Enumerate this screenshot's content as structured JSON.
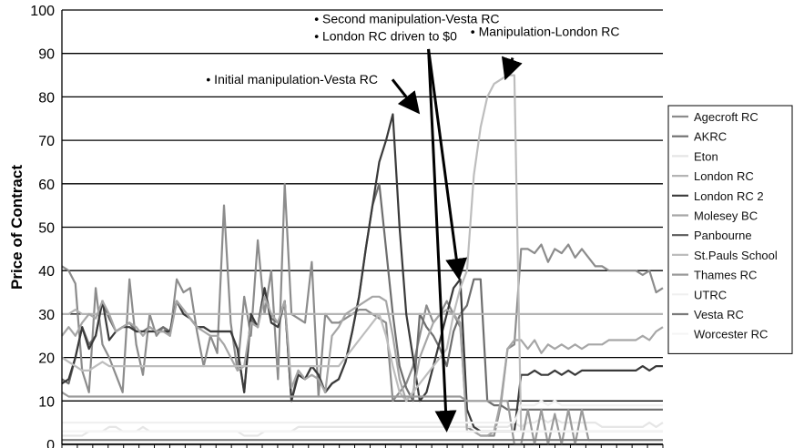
{
  "chart_data": {
    "type": "line",
    "ylabel": "Price of Contract",
    "ylim": [
      0,
      100
    ],
    "yticks": [
      0,
      10,
      20,
      30,
      40,
      50,
      60,
      70,
      80,
      90,
      100
    ],
    "grid": true,
    "legend_position": "right",
    "series": [
      {
        "name": "Agecroft RC",
        "color": "#8c8c8c",
        "values": [
          41,
          40,
          37,
          17,
          12,
          36,
          23,
          20,
          16,
          12,
          38,
          23,
          16,
          30,
          25,
          27,
          25,
          38,
          35,
          36,
          26,
          18,
          25,
          21,
          55,
          28,
          17,
          34,
          25,
          47,
          30,
          40,
          15,
          60,
          30,
          29,
          28,
          42,
          11,
          30,
          28,
          28,
          29,
          30,
          31,
          31,
          30,
          29,
          28,
          10,
          12,
          14,
          18,
          25,
          32,
          28,
          30,
          33,
          30,
          27,
          4,
          3,
          2,
          2,
          2,
          9,
          22,
          23,
          45,
          45,
          44,
          46,
          42,
          45,
          44,
          46,
          43,
          45,
          43,
          41,
          41,
          40,
          40,
          40,
          40,
          40,
          39,
          40,
          35,
          36
        ]
      },
      {
        "name": "AKRC",
        "color": "#6e6e6e",
        "values": [
          15,
          14,
          20,
          27,
          23,
          25,
          33,
          29,
          26,
          27,
          28,
          26,
          26,
          27,
          26,
          27,
          26,
          33,
          31,
          29,
          27,
          27,
          26,
          26,
          26,
          26,
          22,
          12,
          29,
          27,
          36,
          29,
          28,
          33,
          10,
          17,
          15,
          18,
          16,
          12,
          14,
          15,
          19,
          26,
          34,
          45,
          55,
          60,
          45,
          30,
          18,
          13,
          10,
          30,
          27,
          25,
          22,
          18,
          26,
          30,
          32,
          38,
          38,
          10,
          9,
          9,
          8,
          8,
          8,
          8,
          8,
          8,
          8,
          8,
          8,
          8,
          8,
          8,
          8,
          8,
          8,
          8,
          8,
          8,
          8,
          8,
          8,
          8,
          8,
          8
        ]
      },
      {
        "name": "Eton",
        "color": "#e6e6e6",
        "values": [
          2,
          2,
          2,
          2,
          3,
          3,
          3,
          4,
          4,
          3,
          3,
          3,
          4,
          3,
          3,
          3,
          3,
          3,
          3,
          3,
          3,
          3,
          3,
          3,
          3,
          3,
          3,
          2,
          2,
          2,
          3,
          3,
          3,
          3,
          3,
          4,
          4,
          4,
          4,
          4,
          4,
          4,
          4,
          4,
          4,
          4,
          4,
          4,
          4,
          4,
          4,
          4,
          4,
          4,
          4,
          4,
          4,
          4,
          4,
          4,
          4,
          4,
          4,
          4,
          4,
          4,
          4,
          5,
          4,
          5,
          5,
          6,
          5,
          6,
          5,
          5,
          5,
          5,
          5,
          5,
          4,
          4,
          4,
          4,
          4,
          4,
          4,
          5,
          4,
          5
        ]
      },
      {
        "name": "London RC",
        "color": "#b4b4b4",
        "values": [
          30,
          30,
          31,
          30,
          30,
          30,
          30,
          30,
          30,
          30,
          30,
          30,
          30,
          30,
          30,
          30,
          30,
          30,
          30,
          30,
          30,
          30,
          30,
          30,
          30,
          30,
          30,
          30,
          30,
          30,
          30,
          30,
          30,
          30,
          30,
          30,
          30,
          30,
          30,
          30,
          30,
          30,
          30,
          30,
          30,
          30,
          30,
          30,
          30,
          30,
          30,
          30,
          30,
          30,
          30,
          30,
          30,
          30,
          30,
          30,
          30,
          30,
          30,
          30,
          30,
          30,
          30,
          30,
          30,
          30,
          30,
          30,
          30,
          30,
          30,
          30,
          30,
          30,
          30,
          30,
          30,
          30,
          30,
          30,
          30,
          30,
          30,
          30,
          30,
          30
        ]
      },
      {
        "name": "London RC 2",
        "color": "#3a3a3a",
        "values": [
          14,
          15,
          20,
          27,
          22,
          25,
          33,
          24,
          26,
          27,
          27,
          26,
          26,
          26,
          26,
          26,
          26,
          33,
          30,
          29,
          27,
          27,
          26,
          26,
          26,
          26,
          22,
          12,
          30,
          27,
          36,
          28,
          27,
          33,
          10,
          16,
          15,
          18,
          16,
          12,
          14,
          15,
          19,
          26,
          34,
          45,
          55,
          65,
          70,
          76,
          50,
          30,
          20,
          10,
          12,
          18,
          24,
          30,
          36,
          38,
          8,
          4,
          3,
          3,
          3,
          3,
          3,
          3,
          16,
          16,
          17,
          16,
          16,
          17,
          16,
          17,
          16,
          17,
          17,
          17,
          17,
          17,
          17,
          17,
          17,
          17,
          18,
          17,
          18,
          18
        ]
      },
      {
        "name": "Molesey BC",
        "color": "#a6a6a6",
        "values": [
          25,
          27,
          25,
          28,
          30,
          29,
          33,
          30,
          26,
          27,
          28,
          27,
          25,
          27,
          26,
          26,
          25,
          33,
          31,
          29,
          27,
          26,
          25,
          25,
          23,
          20,
          17,
          18,
          28,
          27,
          34,
          30,
          28,
          33,
          13,
          17,
          15,
          16,
          15,
          12,
          25,
          27,
          30,
          31,
          32,
          33,
          34,
          34,
          33,
          25,
          15,
          10,
          12,
          20,
          24,
          28,
          30,
          31,
          30,
          28,
          3,
          3,
          2,
          2,
          3,
          10,
          22,
          24,
          24,
          22,
          24,
          21,
          23,
          22,
          23,
          22,
          23,
          22,
          23,
          23,
          23,
          24,
          24,
          24,
          24,
          24,
          25,
          24,
          26,
          27
        ]
      },
      {
        "name": "Panbourne",
        "color": "#5a5a5a",
        "values": [
          0,
          0,
          0,
          0,
          0,
          0,
          0,
          0,
          0,
          0,
          0,
          0,
          0,
          0,
          0,
          0,
          0,
          0,
          0,
          0,
          0,
          0,
          0,
          0,
          0,
          0,
          0,
          0,
          0,
          0,
          0,
          0,
          0,
          0,
          0,
          0,
          0,
          0,
          0,
          0,
          0,
          0,
          0,
          0,
          0,
          0,
          0,
          0,
          0,
          0,
          0,
          0,
          0,
          0,
          0,
          0,
          0,
          0,
          0,
          0,
          0,
          0,
          0,
          0,
          0,
          0,
          0,
          0,
          0,
          0,
          0,
          0,
          0,
          0,
          0,
          0,
          0,
          0,
          0,
          0,
          0,
          0,
          0,
          0,
          0,
          0,
          0,
          0,
          0,
          0
        ]
      },
      {
        "name": "St.Pauls School",
        "color": "#bdbdbd",
        "values": [
          20,
          19,
          18,
          17,
          17,
          18,
          19,
          18,
          18,
          18,
          18,
          18,
          18,
          18,
          18,
          18,
          18,
          18,
          18,
          18,
          18,
          18,
          18,
          18,
          18,
          18,
          18,
          18,
          18,
          18,
          18,
          18,
          18,
          18,
          18,
          18,
          18,
          18,
          18,
          18,
          18,
          18,
          20,
          22,
          24,
          26,
          28,
          30,
          25,
          18,
          12,
          10,
          12,
          14,
          16,
          18,
          20,
          22,
          30,
          36,
          40,
          62,
          73,
          80,
          83,
          84,
          85,
          85,
          3,
          3,
          3,
          3,
          3,
          3,
          3,
          3,
          3,
          3,
          3,
          3,
          3,
          3,
          3,
          3,
          3,
          3,
          3,
          3,
          3,
          3
        ]
      },
      {
        "name": "Thames RC",
        "color": "#9a9a9a",
        "values": [
          12,
          11,
          11,
          11,
          11,
          11,
          11,
          11,
          11,
          11,
          11,
          11,
          11,
          11,
          11,
          11,
          11,
          11,
          11,
          11,
          11,
          11,
          11,
          11,
          11,
          11,
          11,
          11,
          11,
          11,
          11,
          11,
          11,
          11,
          11,
          11,
          11,
          11,
          11,
          11,
          11,
          11,
          11,
          11,
          11,
          11,
          11,
          11,
          11,
          11,
          11,
          11,
          11,
          11,
          11,
          11,
          11,
          11,
          11,
          11,
          10,
          10,
          10,
          10,
          10,
          10,
          10,
          0,
          0,
          8,
          0,
          8,
          0,
          7,
          0,
          8,
          0,
          8,
          1,
          1,
          1,
          1,
          1,
          1,
          1,
          1,
          1,
          1,
          1,
          1
        ]
      },
      {
        "name": "UTRC",
        "color": "#f0f0f0",
        "values": [
          5,
          5,
          5,
          5,
          5,
          5,
          5,
          5,
          5,
          5,
          5,
          5,
          5,
          5,
          5,
          5,
          5,
          5,
          5,
          5,
          5,
          5,
          5,
          5,
          5,
          5,
          5,
          5,
          5,
          5,
          5,
          5,
          5,
          5,
          5,
          5,
          5,
          5,
          5,
          5,
          5,
          5,
          5,
          5,
          5,
          5,
          5,
          5,
          5,
          5,
          5,
          5,
          5,
          5,
          5,
          5,
          5,
          5,
          5,
          5,
          5,
          5,
          5,
          5,
          5,
          5,
          5,
          5,
          9,
          9,
          9,
          10,
          9,
          10,
          9,
          9,
          9,
          9,
          9,
          9,
          9,
          9,
          9,
          9,
          9,
          9,
          9,
          9,
          9,
          9
        ]
      },
      {
        "name": "Vesta RC",
        "color": "#7a7a7a",
        "values": [
          1,
          1,
          1,
          1,
          1,
          1,
          1,
          1,
          1,
          1,
          1,
          1,
          1,
          1,
          1,
          1,
          1,
          1,
          1,
          1,
          1,
          1,
          1,
          1,
          1,
          1,
          1,
          1,
          1,
          1,
          1,
          1,
          1,
          1,
          1,
          1,
          1,
          1,
          1,
          1,
          1,
          1,
          1,
          1,
          1,
          1,
          1,
          1,
          1,
          1,
          1,
          1,
          1,
          1,
          1,
          1,
          1,
          1,
          1,
          1,
          1,
          1,
          1,
          1,
          1,
          1,
          1,
          1,
          1,
          1,
          1,
          1,
          1,
          1,
          1,
          1,
          1,
          1,
          1,
          1,
          1,
          1,
          1,
          1,
          1,
          1,
          1,
          1,
          1,
          1
        ]
      },
      {
        "name": "Worcester RC",
        "color": "#f5f5f5",
        "values": [
          3,
          3,
          3,
          3,
          3,
          3,
          3,
          3,
          3,
          3,
          3,
          3,
          3,
          3,
          3,
          3,
          3,
          3,
          3,
          3,
          3,
          3,
          3,
          3,
          3,
          3,
          3,
          3,
          3,
          3,
          3,
          3,
          3,
          3,
          3,
          3,
          3,
          3,
          3,
          3,
          3,
          3,
          3,
          3,
          3,
          3,
          3,
          3,
          3,
          3,
          3,
          3,
          3,
          3,
          3,
          3,
          3,
          3,
          3,
          3,
          3,
          3,
          3,
          3,
          3,
          3,
          3,
          3,
          3,
          3,
          3,
          3,
          3,
          3,
          3,
          3,
          3,
          3,
          3,
          3,
          3,
          3,
          3,
          3,
          3,
          3,
          3,
          3,
          3,
          3
        ]
      }
    ],
    "annotations": [
      {
        "text": "• Initial manipulation-Vesta RC",
        "x": 24,
        "y": 83
      },
      {
        "text": "• Second manipulation-Vesta RC",
        "x": 42,
        "y": 97
      },
      {
        "text": "• London RC driven to $0",
        "x": 42,
        "y": 93
      },
      {
        "text": "• Manipulation-London RC",
        "x": 68,
        "y": 94
      }
    ],
    "arrows": [
      {
        "from_x": 55,
        "from_y": 84,
        "to_x": 59,
        "to_y": 77
      },
      {
        "from_x": 61,
        "from_y": 91,
        "to_x": 66,
        "to_y": 39
      },
      {
        "from_x": 61,
        "from_y": 91,
        "to_x": 64,
        "to_y": 4
      },
      {
        "from_x": 75,
        "from_y": 89,
        "to_x": 74,
        "to_y": 85
      }
    ]
  }
}
